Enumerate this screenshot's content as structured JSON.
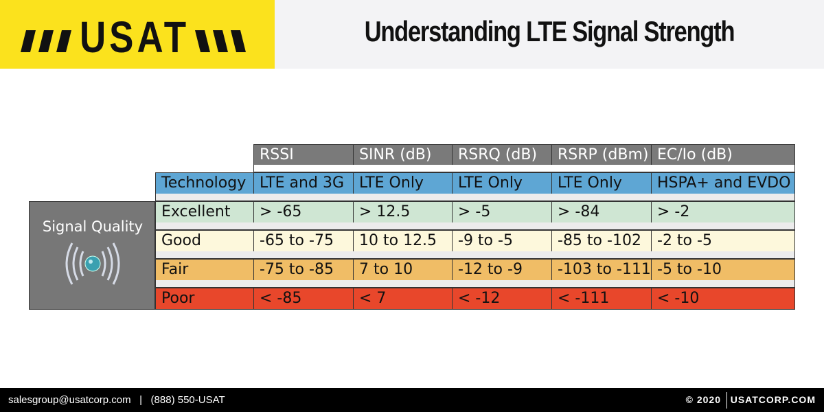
{
  "header": {
    "logo": "USAT",
    "title": "Understanding LTE Signal Strength"
  },
  "table": {
    "side_label": "Signal Quality",
    "columns": [
      "RSSI",
      "SINR (dB)",
      "RSRQ (dB)",
      "RSRP (dBm)",
      "EC/Io (dB)"
    ],
    "rows": [
      {
        "label": "Technology",
        "cells": [
          "LTE and 3G",
          "LTE Only",
          "LTE Only",
          "LTE Only",
          "HSPA+ and EVDO"
        ]
      },
      {
        "label": "Excellent",
        "cells": [
          "> -65",
          "> 12.5",
          "> -5",
          "> -84",
          "> -2"
        ]
      },
      {
        "label": "Good",
        "cells": [
          "-65 to -75",
          "10 to 12.5",
          "-9 to -5",
          "-85 to -102",
          "-2 to -5"
        ]
      },
      {
        "label": "Fair",
        "cells": [
          "-75 to -85",
          "7 to 10",
          "-12 to -9",
          "-103 to -111",
          "-5 to -10"
        ]
      },
      {
        "label": "Poor",
        "cells": [
          "< -85",
          "< 7",
          "< -12",
          "< -111",
          "< -10"
        ]
      }
    ]
  },
  "footer": {
    "contact": "salesgroup@usatcorp.com   |   (888) 550-USAT",
    "copyright": "© 2020",
    "website": "USATCORP.COM"
  }
}
